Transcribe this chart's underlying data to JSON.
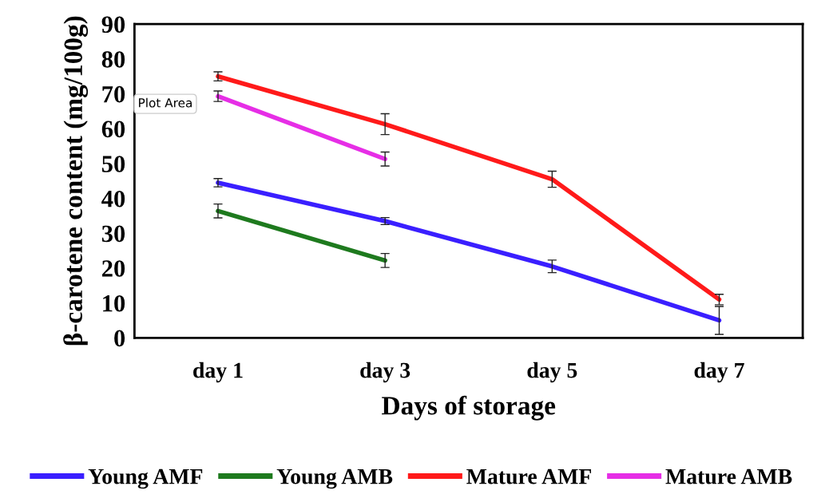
{
  "chart_data": {
    "type": "line",
    "xlabel": "Days of storage",
    "ylabel": "β-carotene content (mg/100g)",
    "categories": [
      "day 1",
      "day 3",
      "day 5",
      "day 7"
    ],
    "series": [
      {
        "name": "Young AMF",
        "color": "#3a1fff",
        "values": [
          44.5,
          33.5,
          20.5,
          5
        ],
        "errors": [
          1.2,
          1,
          1.8,
          4
        ]
      },
      {
        "name": "Young AMB",
        "color": "#1e7a1e",
        "values": [
          36.4,
          22.2,
          null,
          null
        ],
        "errors": [
          2,
          2,
          null,
          null
        ]
      },
      {
        "name": "Mature AMF",
        "color": "#ff1a1a",
        "values": [
          75,
          61.3,
          45.5,
          11
        ],
        "errors": [
          1.3,
          3,
          2.3,
          1.5
        ]
      },
      {
        "name": "Mature AMB",
        "color": "#e62ee6",
        "values": [
          69.3,
          51.3,
          null,
          null
        ],
        "errors": [
          1.5,
          2,
          null,
          null
        ]
      }
    ],
    "ylim": [
      0,
      90
    ],
    "yticks": [
      0,
      10,
      20,
      30,
      40,
      50,
      60,
      70,
      80,
      90
    ],
    "annotations": [
      "Plot Area"
    ],
    "grid": false,
    "legend": "bottom",
    "marker": "none",
    "line_style": "solid"
  }
}
